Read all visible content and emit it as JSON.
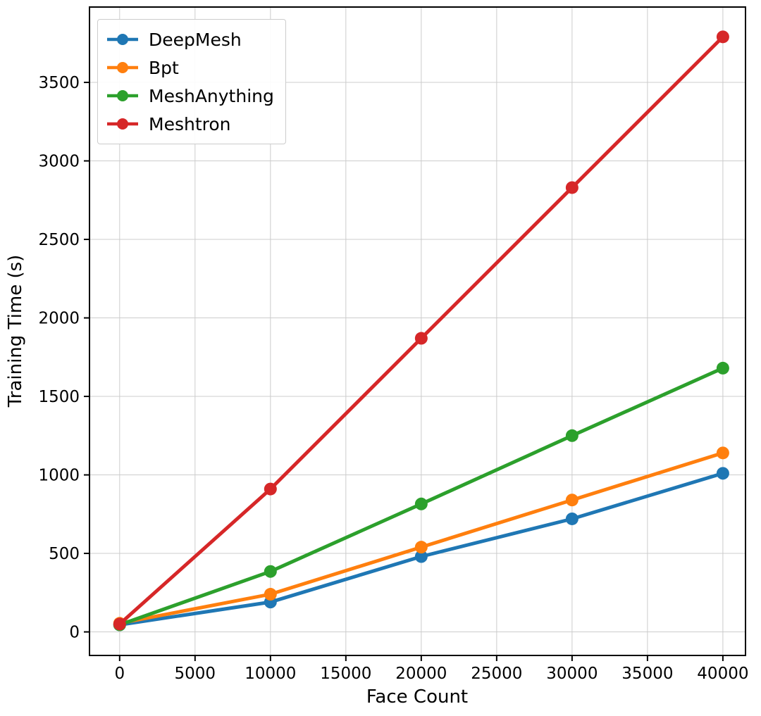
{
  "chart_data": {
    "type": "line",
    "x": [
      0,
      10000,
      20000,
      30000,
      40000
    ],
    "series": [
      {
        "name": "DeepMesh",
        "color": "#1f77b4",
        "values": [
          45,
          190,
          480,
          720,
          1010
        ]
      },
      {
        "name": "Bpt",
        "color": "#ff7f0e",
        "values": [
          55,
          240,
          540,
          840,
          1140
        ]
      },
      {
        "name": "MeshAnything",
        "color": "#2ca02c",
        "values": [
          45,
          385,
          815,
          1250,
          1680
        ]
      },
      {
        "name": "Meshtron",
        "color": "#d62728",
        "values": [
          50,
          910,
          1870,
          2830,
          3790
        ]
      }
    ],
    "title": "",
    "xlabel": "Face Count",
    "ylabel": "Training Time (s)",
    "x_ticks": [
      0,
      5000,
      10000,
      15000,
      20000,
      25000,
      30000,
      35000,
      40000
    ],
    "y_ticks": [
      0,
      500,
      1000,
      1500,
      2000,
      2500,
      3000,
      3500
    ],
    "xlim": [
      -2000,
      41500
    ],
    "ylim": [
      -150,
      3980
    ],
    "grid": true,
    "grid_color": "#cccccc",
    "frame_color": "#000000",
    "legend_position": "upper left",
    "line_width": 5,
    "marker": "o",
    "marker_radius": 9
  }
}
